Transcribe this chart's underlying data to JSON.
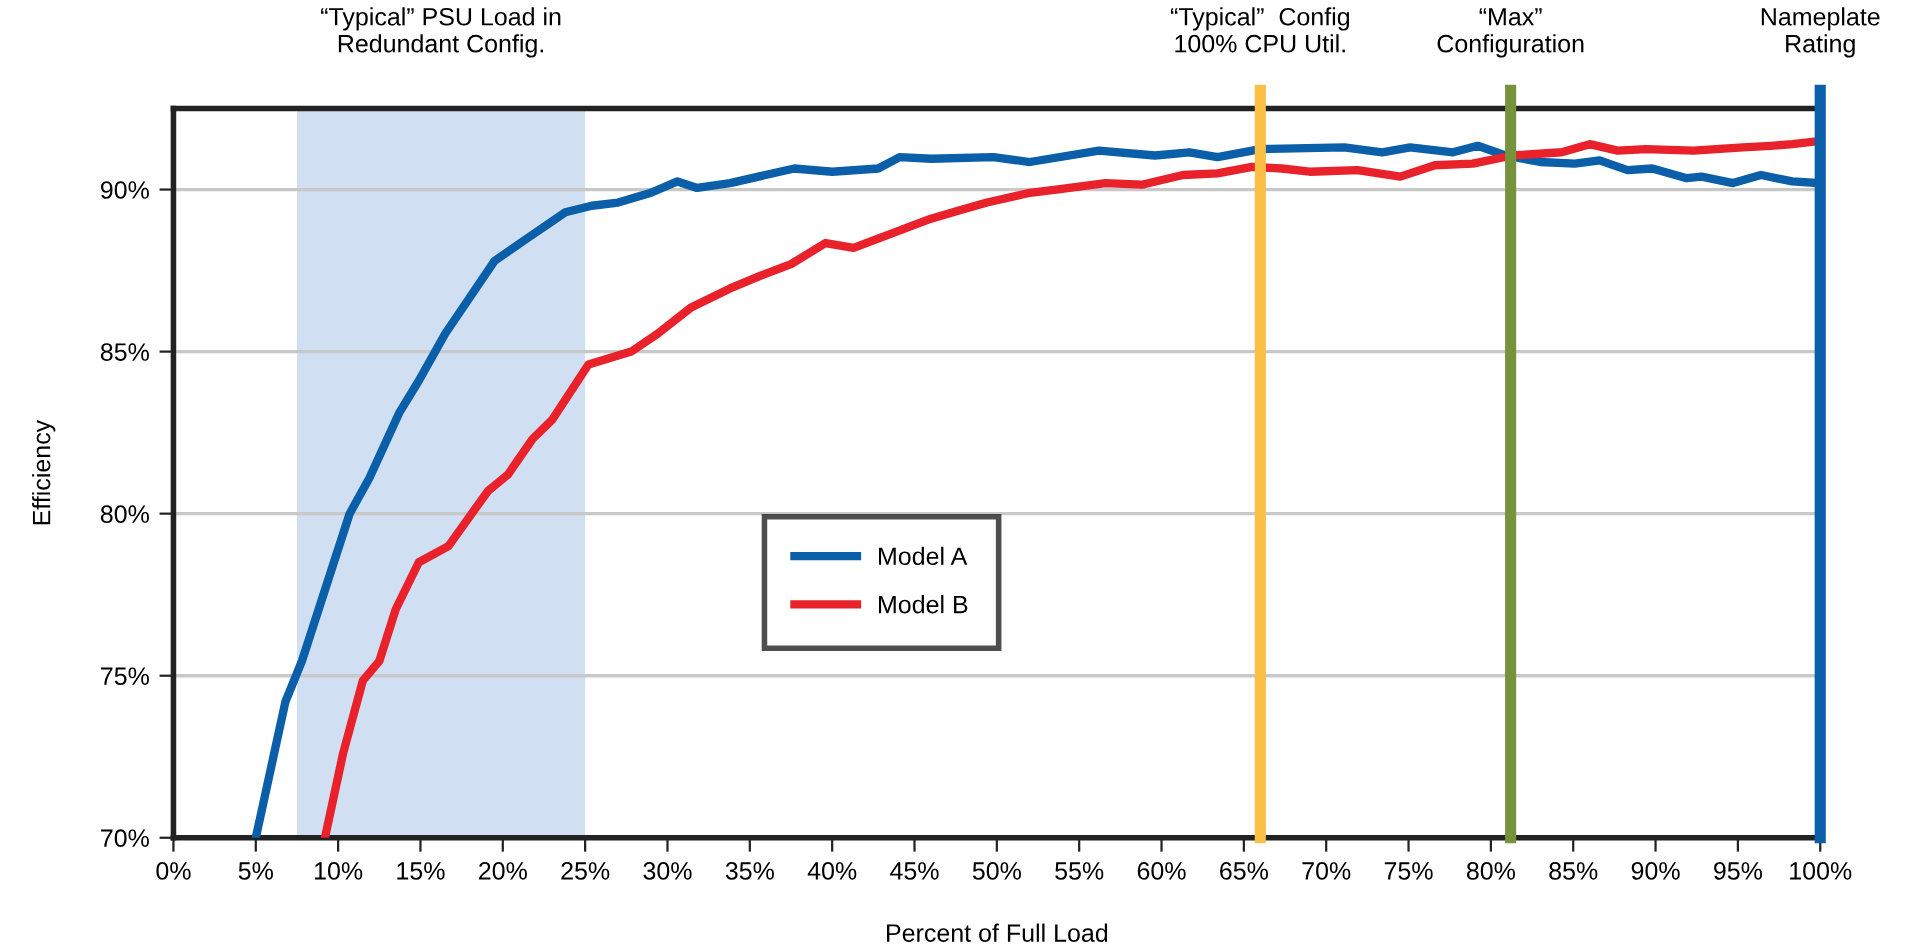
{
  "chart_data": {
    "type": "line",
    "xlabel": "Percent of Full Load",
    "ylabel": "Efficiency",
    "xlim": [
      0,
      100
    ],
    "ylim": [
      70,
      92.5
    ],
    "xticks": [
      {
        "value": 0,
        "label": "0%"
      },
      {
        "value": 5,
        "label": "5%"
      },
      {
        "value": 10,
        "label": "10%"
      },
      {
        "value": 15,
        "label": "15%"
      },
      {
        "value": 20,
        "label": "20%"
      },
      {
        "value": 25,
        "label": "25%"
      },
      {
        "value": 30,
        "label": "30%"
      },
      {
        "value": 35,
        "label": "35%"
      },
      {
        "value": 40,
        "label": "40%"
      },
      {
        "value": 45,
        "label": "45%"
      },
      {
        "value": 50,
        "label": "50%"
      },
      {
        "value": 55,
        "label": "55%"
      },
      {
        "value": 60,
        "label": "60%"
      },
      {
        "value": 65,
        "label": "65%"
      },
      {
        "value": 70,
        "label": "70%"
      },
      {
        "value": 75,
        "label": "75%"
      },
      {
        "value": 80,
        "label": "80%"
      },
      {
        "value": 85,
        "label": "85%"
      },
      {
        "value": 90,
        "label": "90%"
      },
      {
        "value": 95,
        "label": "95%"
      },
      {
        "value": 100,
        "label": "100%"
      }
    ],
    "yticks": [
      {
        "value": 70,
        "label": "70%"
      },
      {
        "value": 75,
        "label": "75%"
      },
      {
        "value": 80,
        "label": "80%"
      },
      {
        "value": 85,
        "label": "85%"
      },
      {
        "value": 90,
        "label": "90%"
      }
    ],
    "grid": "y",
    "legend": "center",
    "marker": "none",
    "line_style": "solid",
    "series": [
      {
        "name": "Model A",
        "color": "#0a5fa8",
        "x": [
          5.0,
          6.8,
          7.8,
          10.7,
          11.9,
          13.7,
          14.9,
          16.5,
          17.9,
          19.5,
          21.5,
          23.8,
          25.4,
          27.0,
          29.0,
          30.6,
          31.8,
          33.8,
          37.7,
          40.0,
          42.8,
          44.1,
          46.0,
          49.8,
          52.0,
          56.2,
          59.6,
          61.7,
          63.4,
          66.0,
          71.1,
          73.4,
          75.1,
          77.7,
          79.2,
          80.9,
          83.0,
          85.1,
          86.6,
          88.3,
          89.8,
          91.9,
          92.8,
          94.7,
          96.4,
          98.3,
          99.9
        ],
        "values": [
          70.0,
          74.2,
          75.45,
          80.0,
          81.1,
          83.1,
          84.1,
          85.55,
          86.6,
          87.8,
          88.5,
          89.3,
          89.5,
          89.6,
          89.9,
          90.25,
          90.05,
          90.2,
          90.65,
          90.55,
          90.65,
          91.0,
          90.95,
          91.0,
          90.85,
          91.2,
          91.05,
          91.15,
          91.0,
          91.25,
          91.3,
          91.15,
          91.3,
          91.15,
          91.35,
          91.05,
          90.85,
          90.8,
          90.9,
          90.6,
          90.65,
          90.35,
          90.4,
          90.2,
          90.45,
          90.25,
          90.2
        ]
      },
      {
        "name": "Model B",
        "color": "#e8212b",
        "x": [
          9.2,
          10.3,
          11.5,
          12.5,
          13.5,
          14.9,
          16.7,
          19.1,
          20.3,
          21.8,
          23.0,
          25.2,
          27.8,
          29.4,
          31.4,
          33.8,
          35.7,
          37.5,
          39.6,
          41.3,
          46.0,
          47.7,
          49.4,
          52.0,
          53.6,
          56.6,
          58.8,
          61.3,
          63.4,
          65.5,
          67.3,
          69.0,
          71.9,
          74.5,
          76.6,
          78.9,
          81.3,
          84.3,
          86.0,
          87.7,
          89.4,
          92.3,
          95.3,
          97.0,
          98.3,
          100
        ],
        "values": [
          70.0,
          72.6,
          74.85,
          75.45,
          77.05,
          78.5,
          79.0,
          80.7,
          81.2,
          82.3,
          82.9,
          84.6,
          85.0,
          85.55,
          86.35,
          86.95,
          87.35,
          87.7,
          88.35,
          88.2,
          89.1,
          89.35,
          89.6,
          89.9,
          90.0,
          90.2,
          90.15,
          90.45,
          90.5,
          90.7,
          90.65,
          90.55,
          90.6,
          90.4,
          90.75,
          90.8,
          91.05,
          91.15,
          91.4,
          91.2,
          91.25,
          91.2,
          91.3,
          91.35,
          91.4,
          91.5
        ]
      }
    ],
    "bands": [
      {
        "axis": "x",
        "from": 7.5,
        "to": 25,
        "label": "“Typical” PSU Load in\nRedundant Config.",
        "color": "#d0dff2"
      }
    ],
    "ref_lines": [
      {
        "axis": "x",
        "value": 66,
        "label": "“Typical”  Config\n100% CPU Util.",
        "color": "#fbbf45"
      },
      {
        "axis": "x",
        "value": 81.2,
        "label": "“Max”\nConfiguration",
        "color": "#76923c"
      },
      {
        "axis": "x",
        "value": 100,
        "label": "Nameplate\nRating",
        "color": "#0a5fa8"
      }
    ]
  }
}
